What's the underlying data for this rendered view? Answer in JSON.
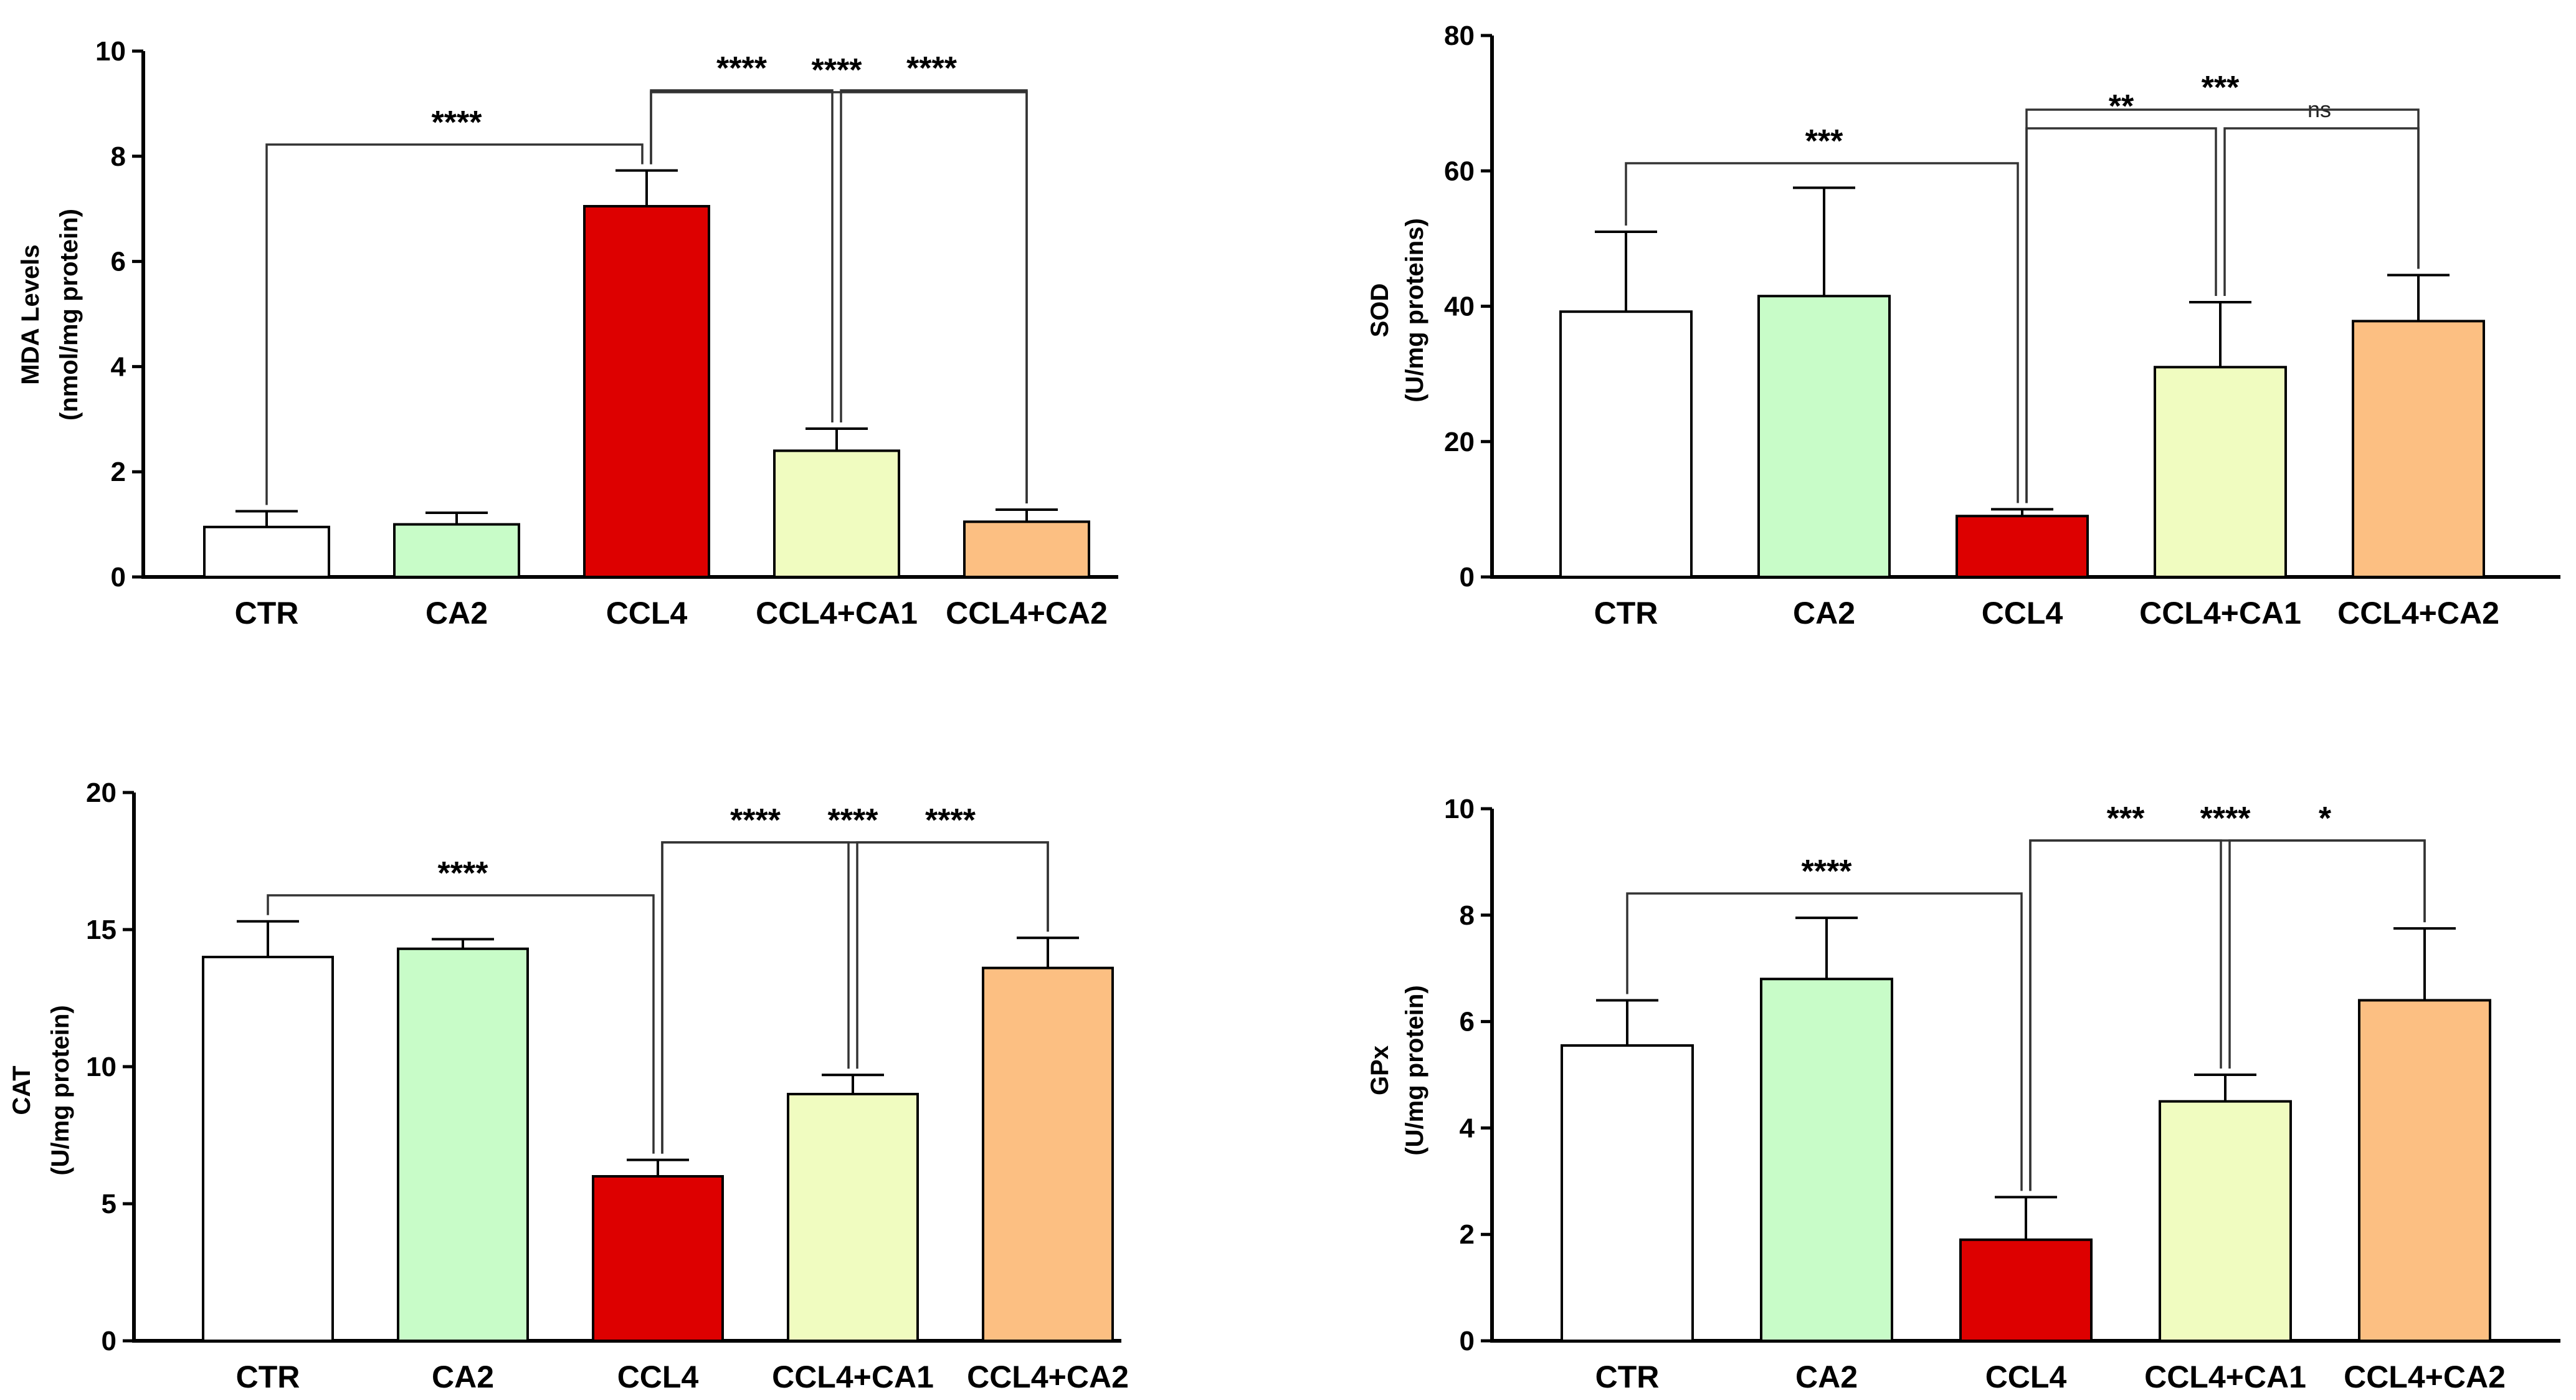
{
  "chart_data": [
    {
      "type": "bar",
      "id": "mda",
      "ylabel_lines": [
        "MDA Levels",
        "(nmol/mg protein)"
      ],
      "categories": [
        "CTR",
        "CA2",
        "CCL4",
        "CCL4+CA1",
        "CCL4+CA2"
      ],
      "values": [
        0.95,
        1.0,
        7.05,
        2.4,
        1.05
      ],
      "errors": [
        0.3,
        0.22,
        0.68,
        0.42,
        0.23
      ],
      "colors": [
        "#ffffff",
        "#c8fcc8",
        "#dd0000",
        "#f0fcc0",
        "#fcbf82"
      ],
      "ylim": [
        0,
        10
      ],
      "yticks": [
        0,
        2,
        4,
        6,
        8,
        10
      ],
      "comparisons": [
        {
          "from": 0,
          "to": 2,
          "label": "****"
        },
        {
          "from": 2,
          "to": 3,
          "label": "****"
        },
        {
          "from": 3,
          "to": 4,
          "label": "****"
        },
        {
          "from": 2,
          "to": 4,
          "label": "****"
        }
      ]
    },
    {
      "type": "bar",
      "id": "sod",
      "ylabel_lines": [
        "SOD",
        "(U/mg proteins)"
      ],
      "categories": [
        "CTR",
        "CA2",
        "CCL4",
        "CCL4+CA1",
        "CCL4+CA2"
      ],
      "values": [
        39.2,
        41.5,
        9.0,
        31.0,
        37.8
      ],
      "errors": [
        11.8,
        16.0,
        1.0,
        9.6,
        6.8
      ],
      "colors": [
        "#ffffff",
        "#c8fcc8",
        "#dd0000",
        "#f0fcc0",
        "#fcbf82"
      ],
      "ylim": [
        0,
        80
      ],
      "yticks": [
        0,
        20,
        40,
        60,
        80
      ],
      "comparisons": [
        {
          "from": 0,
          "to": 2,
          "label": "***"
        },
        {
          "from": 2,
          "to": 3,
          "label": "**"
        },
        {
          "from": 3,
          "to": 4,
          "label": "ns"
        },
        {
          "from": 2,
          "to": 4,
          "label": "***"
        }
      ]
    },
    {
      "type": "bar",
      "id": "cat",
      "ylabel_lines": [
        "CAT",
        "(U/mg protein)"
      ],
      "categories": [
        "CTR",
        "CA2",
        "CCL4",
        "CCL4+CA1",
        "CCL4+CA2"
      ],
      "values": [
        14.0,
        14.3,
        6.0,
        9.0,
        13.6
      ],
      "errors": [
        1.3,
        0.35,
        0.6,
        0.7,
        1.1
      ],
      "colors": [
        "#ffffff",
        "#c8fcc8",
        "#dd0000",
        "#f0fcc0",
        "#fcbf82"
      ],
      "ylim": [
        0,
        20
      ],
      "yticks": [
        0,
        5,
        10,
        15,
        20
      ],
      "comparisons": [
        {
          "from": 0,
          "to": 2,
          "label": "****"
        },
        {
          "from": 2,
          "to": 3,
          "label": "****"
        },
        {
          "from": 3,
          "to": 4,
          "label": "****"
        },
        {
          "from": 2,
          "to": 4,
          "label": "****"
        }
      ]
    },
    {
      "type": "bar",
      "id": "gpx",
      "ylabel_lines": [
        "GPx",
        "(U/mg protein)"
      ],
      "categories": [
        "CTR",
        "CA2",
        "CCL4",
        "CCL4+CA1",
        "CCL4+CA2"
      ],
      "values": [
        5.55,
        6.8,
        1.9,
        4.5,
        6.4
      ],
      "errors": [
        0.85,
        1.15,
        0.8,
        0.5,
        1.35
      ],
      "colors": [
        "#ffffff",
        "#c8fcc8",
        "#dd0000",
        "#f0fcc0",
        "#fcbf82"
      ],
      "ylim": [
        0,
        10
      ],
      "yticks": [
        0,
        2,
        4,
        6,
        8,
        10
      ],
      "comparisons": [
        {
          "from": 0,
          "to": 2,
          "label": "****"
        },
        {
          "from": 2,
          "to": 3,
          "label": "***"
        },
        {
          "from": 3,
          "to": 4,
          "label": "*"
        },
        {
          "from": 2,
          "to": 4,
          "label": "****"
        }
      ]
    }
  ]
}
